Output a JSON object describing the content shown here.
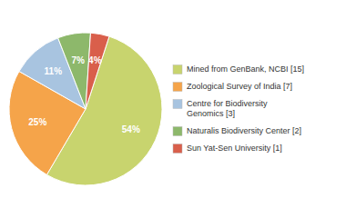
{
  "chart_data": {
    "type": "pie",
    "categories": [
      "Mined from GenBank, NCBI [15]",
      "Zoological Survey of India [7]",
      "Centre for Biodiversity\nGenomics [3]",
      "Naturalis Biodiversity Center [2]",
      "Sun Yat-Sen University [1]"
    ],
    "values": [
      54,
      25,
      11,
      7,
      4
    ],
    "value_labels": [
      "54%",
      "25%",
      "11%",
      "7%",
      "4%"
    ],
    "colors": [
      "#c8d46e",
      "#f5a44a",
      "#a8c4e0",
      "#8db86b",
      "#d95f4b"
    ],
    "data_labels": true,
    "legend": "right"
  }
}
